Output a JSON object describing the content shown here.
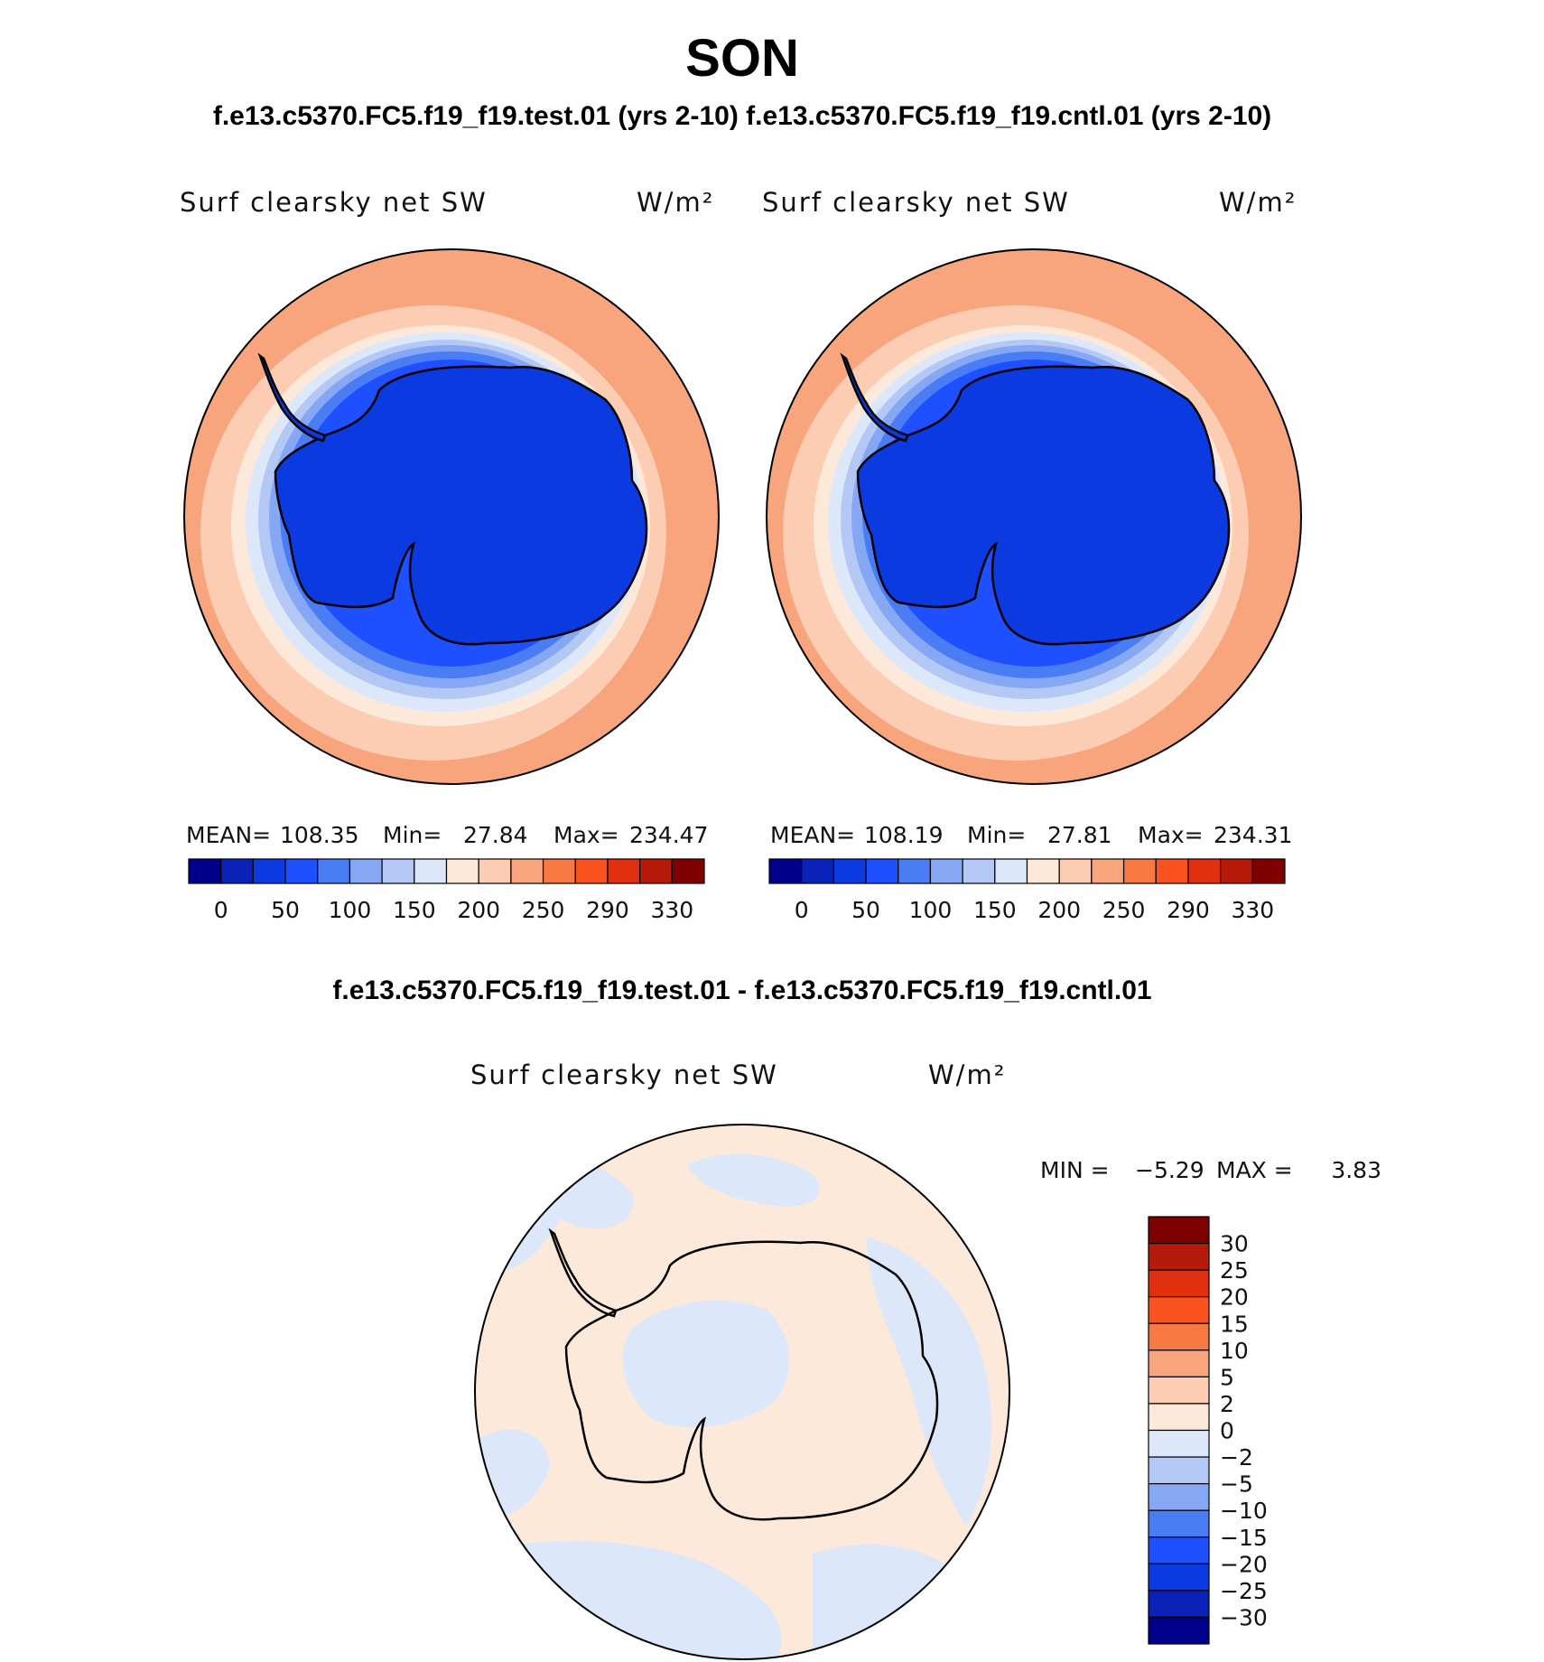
{
  "header": {
    "season": "SON",
    "run_titles": "f.e13.c5370.FC5.f19_f19.test.01 (yrs 2-10) f.e13.c5370.FC5.f19_f19.cntl.01 (yrs 2-10)",
    "diff_title": "f.e13.c5370.FC5.f19_f19.test.01 - f.e13.c5370.FC5.f19_f19.cntl.01"
  },
  "chart_data": [
    {
      "type": "heatmap",
      "projection": "south-polar-stereographic",
      "title": "Surf clearsky net SW",
      "units": "W/m²",
      "stats": {
        "mean_label": "MEAN=",
        "mean": "108.35",
        "min_label": "Min=",
        "min": "27.84",
        "max_label": "Max=",
        "max": "234.47"
      },
      "colorbar": {
        "orientation": "horizontal",
        "ticks": [
          "0",
          "50",
          "100",
          "150",
          "200",
          "250",
          "290",
          "330"
        ],
        "colors": [
          "#00008b",
          "#0a22b8",
          "#0a3ae0",
          "#1e50ff",
          "#4a7cf4",
          "#86a8f4",
          "#b3c8f5",
          "#dce8fa",
          "#fde9da",
          "#fcccb3",
          "#f8a47c",
          "#f77a45",
          "#fb5320",
          "#e03010",
          "#b51a0a",
          "#7e0000"
        ]
      }
    },
    {
      "type": "heatmap",
      "projection": "south-polar-stereographic",
      "title": "Surf clearsky net SW",
      "units": "W/m²",
      "stats": {
        "mean_label": "MEAN=",
        "mean": "108.19",
        "min_label": "Min=",
        "min": "27.81",
        "max_label": "Max=",
        "max": "234.31"
      },
      "colorbar": {
        "orientation": "horizontal",
        "ticks": [
          "0",
          "50",
          "100",
          "150",
          "200",
          "250",
          "290",
          "330"
        ],
        "colors": [
          "#00008b",
          "#0a22b8",
          "#0a3ae0",
          "#1e50ff",
          "#4a7cf4",
          "#86a8f4",
          "#b3c8f5",
          "#dce8fa",
          "#fde9da",
          "#fcccb3",
          "#f8a47c",
          "#f77a45",
          "#fb5320",
          "#e03010",
          "#b51a0a",
          "#7e0000"
        ]
      }
    },
    {
      "type": "heatmap",
      "projection": "south-polar-stereographic",
      "title": "Surf clearsky net SW",
      "units": "W/m²",
      "stats": {
        "min_label": "MIN =",
        "min": "−5.29",
        "max_label": "MAX =",
        "max": "3.83"
      },
      "colorbar": {
        "orientation": "vertical",
        "ticks": [
          "30",
          "25",
          "20",
          "15",
          "10",
          "5",
          "2",
          "0",
          "−2",
          "−5",
          "−10",
          "−15",
          "−20",
          "−25",
          "−30"
        ],
        "colors": [
          "#7e0000",
          "#b51a0a",
          "#e03010",
          "#fb5320",
          "#f77a45",
          "#f8a47c",
          "#fcccb3",
          "#fde9da",
          "#dce8fa",
          "#b3c8f5",
          "#86a8f4",
          "#4a7cf4",
          "#1e50ff",
          "#0a3ae0",
          "#0a22b8",
          "#00008b"
        ]
      }
    }
  ]
}
